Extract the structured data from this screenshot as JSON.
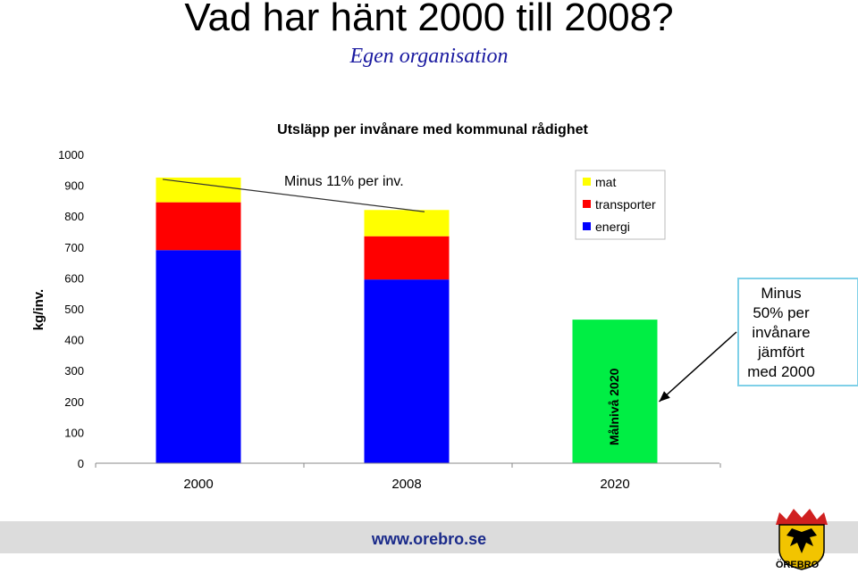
{
  "slide": {
    "title": "Vad har hänt 2000 till 2008?",
    "subtitle": "Egen organisation",
    "footer_url": "www.orebro.se",
    "logo_text": "ÖREBRO"
  },
  "chart_data": {
    "type": "bar",
    "stacked": true,
    "title": "Utsläpp per invånare med kommunal rådighet",
    "ylabel": "kg/inv.",
    "xlabel": "",
    "categories": [
      "2000",
      "2008",
      "2020"
    ],
    "yticks": [
      0,
      100,
      200,
      300,
      400,
      500,
      600,
      700,
      800,
      900,
      1000
    ],
    "ylim": [
      0,
      1000
    ],
    "grid": false,
    "legend_position": "top-right",
    "series": [
      {
        "name": "energi",
        "color": "#0000ff",
        "values": [
          690,
          595,
          0
        ]
      },
      {
        "name": "transporter",
        "color": "#ff0000",
        "values": [
          155,
          140,
          0
        ]
      },
      {
        "name": "mat",
        "color": "#ffff00",
        "values": [
          80,
          85,
          0
        ]
      }
    ],
    "target": {
      "category": "2020",
      "value": 465,
      "color": "#00ee44",
      "label": "Målnivå 2020"
    },
    "annotations": {
      "change": "Minus 11% per inv.",
      "goal": "Minus 50% per invånare jämfört med 2000"
    }
  }
}
